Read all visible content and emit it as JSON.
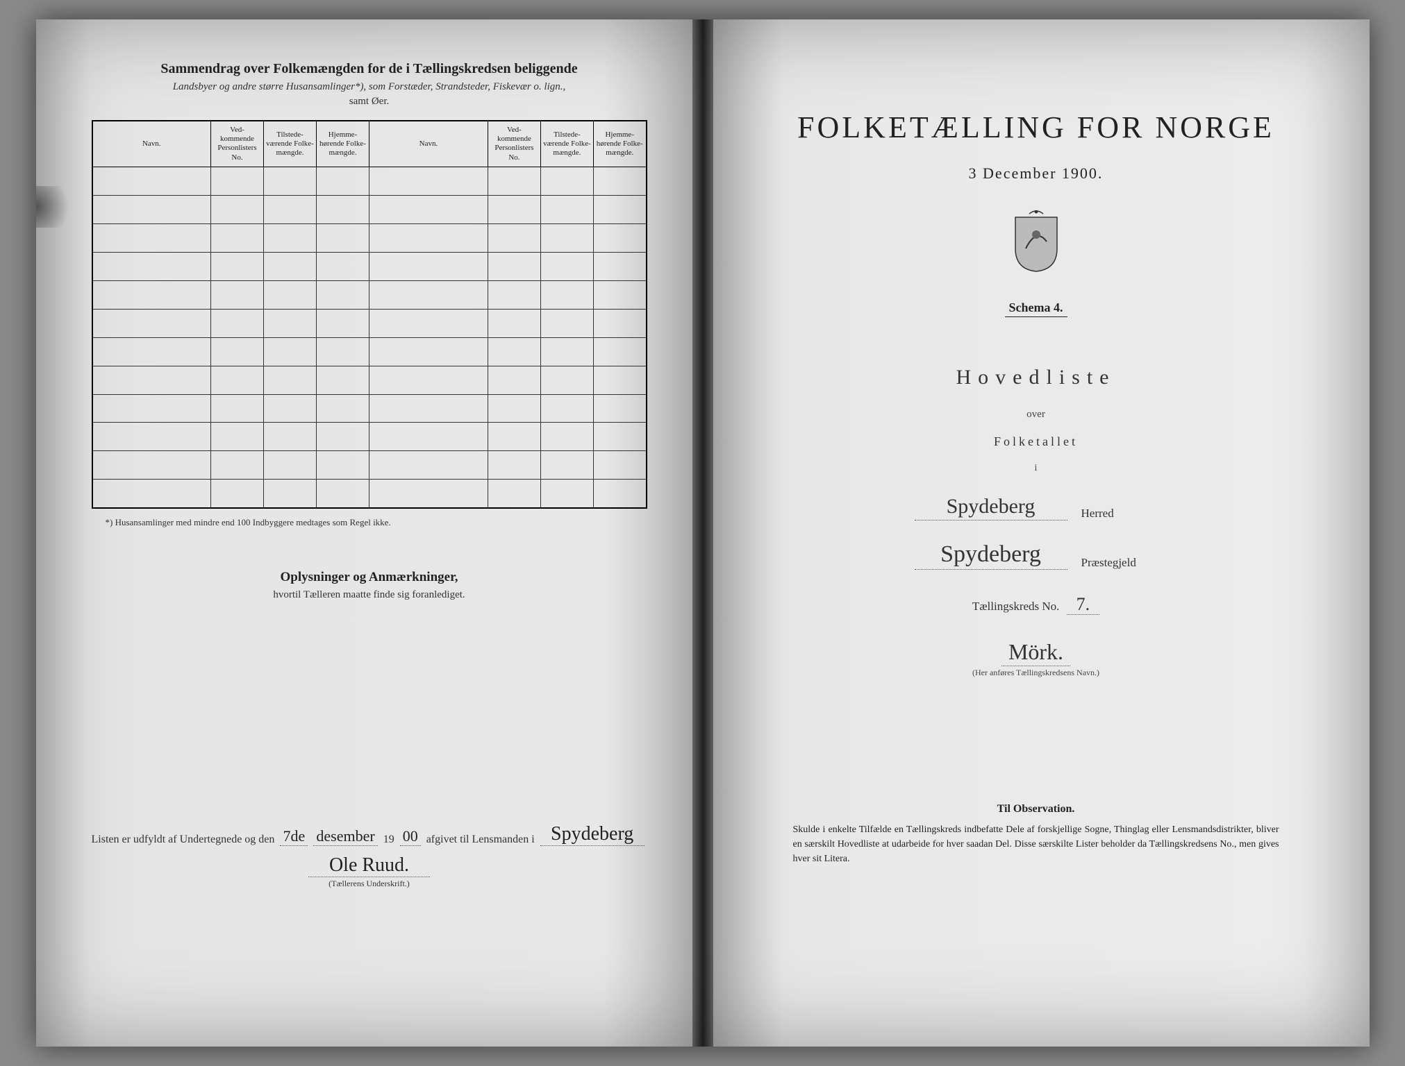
{
  "left": {
    "title": "Sammendrag over Folkemængden for de i Tællingskredsen beliggende",
    "subtitle_html": "Landsbyer og andre større Husansamlinger*), som Forstæder, Strandsteder, Fiskevær o. lign.,",
    "subtitle2": "samt Øer.",
    "table": {
      "cols": [
        "Navn.",
        "Ved-\nkommende\nPersonlisters\nNo.",
        "Tilstede-\nværende\nFolke-\nmængde.",
        "Hjemme-\nhørende\nFolke-\nmængde.",
        "Navn.",
        "Ved-\nkommende\nPersonlisters\nNo.",
        "Tilstede-\nværende\nFolke-\nmængde.",
        "Hjemme-\nhørende\nFolke-\nmængde."
      ],
      "row_count": 12
    },
    "footnote": "*) Husansamlinger med mindre end 100 Indbyggere medtages som Regel ikke.",
    "oplysninger_title": "Oplysninger og Anmærkninger,",
    "oplysninger_sub": "hvortil Tælleren maatte finde sig foranlediget.",
    "listen_prefix": "Listen er udfyldt af Undertegnede og den",
    "listen_day": "7de",
    "listen_month": "desember",
    "listen_year_prefix": "19",
    "listen_year_fill": "00",
    "listen_mid": "afgivet til Lensmanden i",
    "listen_place": "Spydeberg",
    "signature": "Ole Ruud.",
    "sig_label": "(Tællerens Underskrift.)"
  },
  "right": {
    "main_title": "FOLKETÆLLING FOR NORGE",
    "date": "3 December 1900.",
    "schema": "Schema 4.",
    "hovedliste": "Hovedliste",
    "over": "over",
    "folketallet": "Folketallet",
    "i": "i",
    "herred_value": "Spydeberg",
    "herred_label": "Herred",
    "praestegjeld_value": "Spydeberg",
    "praestegjeld_label": "Præstegjeld",
    "kreds_label": "Tællingskreds No.",
    "kreds_no": "7.",
    "kreds_name": "Mörk.",
    "kreds_hint": "(Her anføres Tællingskredsens Navn.)",
    "obs_title": "Til Observation.",
    "obs_text": "Skulde i enkelte Tilfælde en Tællingskreds indbefatte Dele af forskjellige Sogne, Thinglag eller Lensmandsdistrikter, bliver en særskilt Hovedliste at udarbeide for hver saadan Del. Disse særskilte Lister beholder da Tællingskredsens No., men gives hver sit Litera."
  },
  "style": {
    "ink": "#222222",
    "paper_left": "#e5e5e5",
    "paper_right": "#ececec",
    "cursive_font": "Brush Script MT"
  }
}
